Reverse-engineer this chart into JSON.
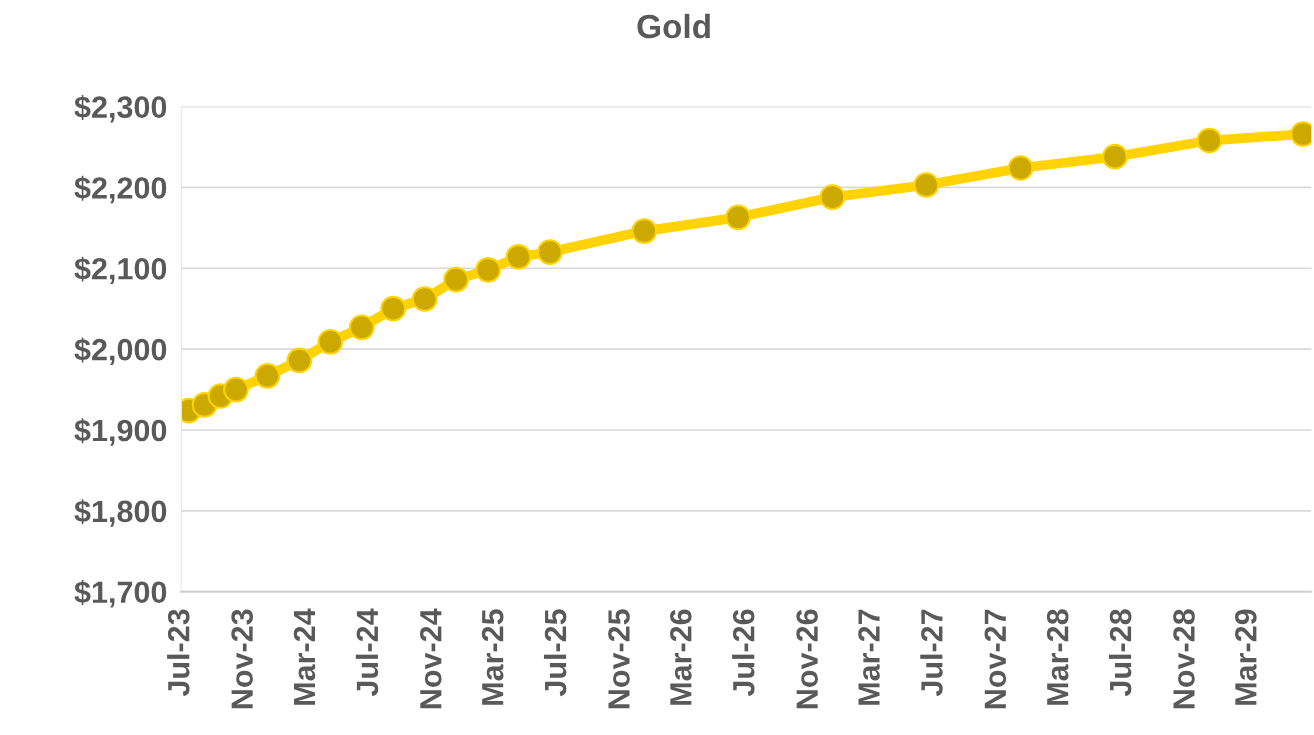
{
  "chart_data": {
    "type": "line",
    "title": "Gold",
    "x": [
      "2023-07-15",
      "2023-08-15",
      "2023-09-15",
      "2023-10-15",
      "2023-12-15",
      "2024-02-15",
      "2024-04-15",
      "2024-06-15",
      "2024-08-15",
      "2024-10-15",
      "2024-12-15",
      "2025-02-15",
      "2025-04-15",
      "2025-06-15",
      "2025-12-15",
      "2026-06-15",
      "2026-12-15",
      "2027-06-15",
      "2027-12-15",
      "2028-06-15",
      "2028-12-15",
      "2029-06-15"
    ],
    "series": [
      {
        "color": "#ffd300",
        "values": [
          1924,
          1931,
          1942,
          1950,
          1967,
          1986,
          2009,
          2027,
          2050,
          2062,
          2086,
          2098,
          2114,
          2120,
          2146,
          2163,
          2188,
          2203,
          2224,
          2238,
          2258,
          2266
        ]
      }
    ],
    "xlim": [
      "2023-07",
      "2029-07"
    ],
    "xticks": [
      {
        "value": "2023-07",
        "label": "Jul-23"
      },
      {
        "value": "2023-11",
        "label": "Nov-23"
      },
      {
        "value": "2024-03",
        "label": "Mar-24"
      },
      {
        "value": "2024-07",
        "label": "Jul-24"
      },
      {
        "value": "2024-11",
        "label": "Nov-24"
      },
      {
        "value": "2025-03",
        "label": "Mar-25"
      },
      {
        "value": "2025-07",
        "label": "Jul-25"
      },
      {
        "value": "2025-11",
        "label": "Nov-25"
      },
      {
        "value": "2026-03",
        "label": "Mar-26"
      },
      {
        "value": "2026-07",
        "label": "Jul-26"
      },
      {
        "value": "2026-11",
        "label": "Nov-26"
      },
      {
        "value": "2027-03",
        "label": "Mar-27"
      },
      {
        "value": "2027-07",
        "label": "Jul-27"
      },
      {
        "value": "2027-11",
        "label": "Nov-27"
      },
      {
        "value": "2028-03",
        "label": "Mar-28"
      },
      {
        "value": "2028-07",
        "label": "Jul-28"
      },
      {
        "value": "2028-11",
        "label": "Nov-28"
      },
      {
        "value": "2029-03",
        "label": "Mar-29"
      }
    ],
    "ylim": [
      1700,
      2300
    ],
    "yticks": [
      {
        "value": 1700,
        "label": "$1,700"
      },
      {
        "value": 1800,
        "label": "$1,800"
      },
      {
        "value": 1900,
        "label": "$1,900"
      },
      {
        "value": 2000,
        "label": "$2,000"
      },
      {
        "value": 2100,
        "label": "$2,100"
      },
      {
        "value": 2200,
        "label": "$2,200"
      },
      {
        "value": 2300,
        "label": "$2,300"
      }
    ],
    "grid": "y",
    "marker": "circle",
    "line_style": "solid",
    "legend": false
  }
}
